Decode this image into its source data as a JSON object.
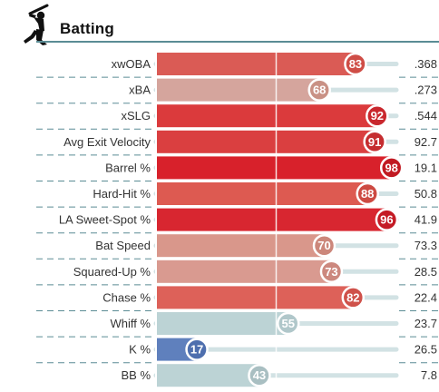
{
  "header": {
    "title": "Batting",
    "icon": "batter-silhouette-icon"
  },
  "chart_data": {
    "type": "bar",
    "orientation": "horizontal",
    "title": "Batting",
    "xlim": [
      0,
      100
    ],
    "categories": [
      "xwOBA",
      "xBA",
      "xSLG",
      "Avg Exit Velocity",
      "Barrel %",
      "Hard-Hit %",
      "LA Sweet-Spot %",
      "Bat Speed",
      "Squared-Up %",
      "Chase %",
      "Whiff %",
      "K %",
      "BB %"
    ],
    "series": [
      {
        "name": "",
        "values": [
          83,
          68,
          92,
          91,
          98,
          88,
          96,
          70,
          73,
          82,
          55,
          17,
          43
        ]
      }
    ],
    "stat_values": [
      ".368",
      ".273",
      ".544",
      "92.7",
      "19.1",
      "50.8",
      "41.9",
      "73.3",
      "28.5",
      "22.4",
      "23.7",
      "26.5",
      "7.8"
    ],
    "bar_colors": [
      "#da5b55",
      "#d5a59d",
      "#db3a3c",
      "#da3f40",
      "#d8212b",
      "#dd5a51",
      "#d82630",
      "#d9978b",
      "#d99a90",
      "#dd6159",
      "#bcd3d5",
      "#5f80bd",
      "#bcd3d5"
    ],
    "circle_colors": [
      "#cf4d46",
      "#c99185",
      "#c9272d",
      "#c52d30",
      "#c11a22",
      "#cd4a42",
      "#c41b25",
      "#cc877b",
      "#cc887e",
      "#cf514a",
      "#b0c7ca",
      "#4e6fae",
      "#a9bfc2"
    ],
    "track_color": "#d2e2e4",
    "average_line": 50
  }
}
